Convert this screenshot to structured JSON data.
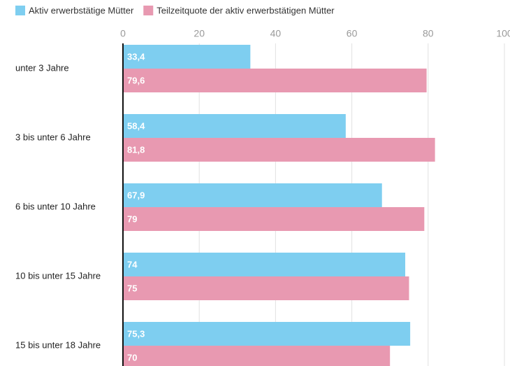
{
  "chart_data": {
    "type": "barh",
    "categories": [
      "unter 3 Jahre",
      "3 bis unter 6 Jahre",
      "6 bis unter 10 Jahre",
      "10 bis unter 15 Jahre",
      "15 bis unter 18 Jahre"
    ],
    "series": [
      {
        "name": "Aktiv erwerbstätige Mütter",
        "color": "#7ecef0",
        "values": [
          33.4,
          58.4,
          67.9,
          74,
          75.3
        ],
        "value_labels": [
          "33,4",
          "58,4",
          "67,9",
          "74",
          "75,3"
        ]
      },
      {
        "name": "Teilzeitquote der aktiv erwerbstätigen Mütter",
        "color": "#e899b1",
        "values": [
          79.6,
          81.8,
          79,
          75,
          70
        ],
        "value_labels": [
          "79,6",
          "81,8",
          "79",
          "75",
          "70"
        ]
      }
    ],
    "xlim": [
      0,
      100
    ],
    "xticks": [
      0,
      20,
      40,
      60,
      80,
      100
    ],
    "grid": true,
    "legend": "top"
  }
}
